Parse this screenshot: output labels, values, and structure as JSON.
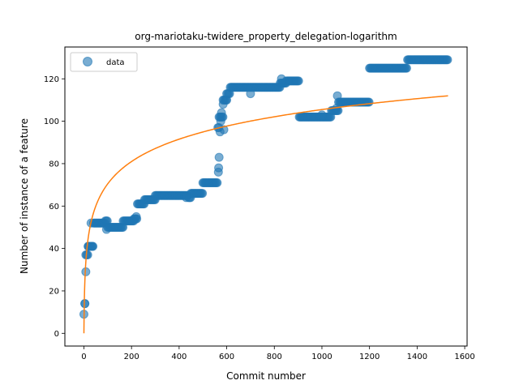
{
  "chart_data": {
    "type": "scatter",
    "title": "org-mariotaku-twidere_property_delegation-logarithm",
    "xlabel": "Commit number",
    "ylabel": "Number of instance of a feature",
    "xlim": [
      -80,
      1610
    ],
    "ylim": [
      -6,
      135
    ],
    "xticks": [
      0,
      200,
      400,
      600,
      800,
      1000,
      1200,
      1400,
      1600
    ],
    "yticks": [
      0,
      20,
      40,
      60,
      80,
      100,
      120
    ],
    "grid": false,
    "legend": {
      "placement": "top-left",
      "entries": [
        "data"
      ]
    },
    "colors": {
      "data": "#1f77b4",
      "fit": "#ff7f0e"
    },
    "series": [
      {
        "name": "data",
        "kind": "scatter",
        "steps": [
          [
            0,
            4,
            9
          ],
          [
            4,
            8,
            14
          ],
          [
            8,
            12,
            29
          ],
          [
            12,
            18,
            37
          ],
          [
            18,
            40,
            41
          ],
          [
            40,
            90,
            52
          ],
          [
            90,
            100,
            53
          ],
          [
            100,
            165,
            50
          ],
          [
            165,
            210,
            53
          ],
          [
            210,
            225,
            54
          ],
          [
            225,
            255,
            61
          ],
          [
            255,
            300,
            63
          ],
          [
            300,
            440,
            65
          ],
          [
            440,
            450,
            64
          ],
          [
            450,
            500,
            66
          ],
          [
            500,
            563,
            71
          ],
          [
            563,
            568,
            97
          ],
          [
            568,
            585,
            102
          ],
          [
            585,
            600,
            110
          ],
          [
            600,
            615,
            113
          ],
          [
            615,
            825,
            116
          ],
          [
            825,
            850,
            118
          ],
          [
            850,
            905,
            119
          ],
          [
            905,
            1040,
            102
          ],
          [
            1040,
            1070,
            105
          ],
          [
            1070,
            1200,
            109
          ],
          [
            1200,
            1360,
            125
          ],
          [
            1360,
            1530,
            129
          ]
        ],
        "outliers": [
          [
            4,
            14
          ],
          [
            8,
            37
          ],
          [
            18,
            41
          ],
          [
            35,
            41
          ],
          [
            30,
            52
          ],
          [
            95,
            49
          ],
          [
            220,
            55
          ],
          [
            430,
            64
          ],
          [
            565,
            76
          ],
          [
            566,
            78
          ],
          [
            568,
            83
          ],
          [
            572,
            95
          ],
          [
            588,
            96
          ],
          [
            575,
            100
          ],
          [
            578,
            104
          ],
          [
            585,
            108
          ],
          [
            600,
            110
          ],
          [
            700,
            113
          ],
          [
            830,
            120
          ],
          [
            1000,
            103
          ],
          [
            1060,
            106
          ],
          [
            1065,
            112
          ]
        ]
      },
      {
        "name": "",
        "kind": "line",
        "model": "logarithm",
        "x_range": [
          0,
          1530
        ],
        "y_end": 112
      }
    ]
  }
}
